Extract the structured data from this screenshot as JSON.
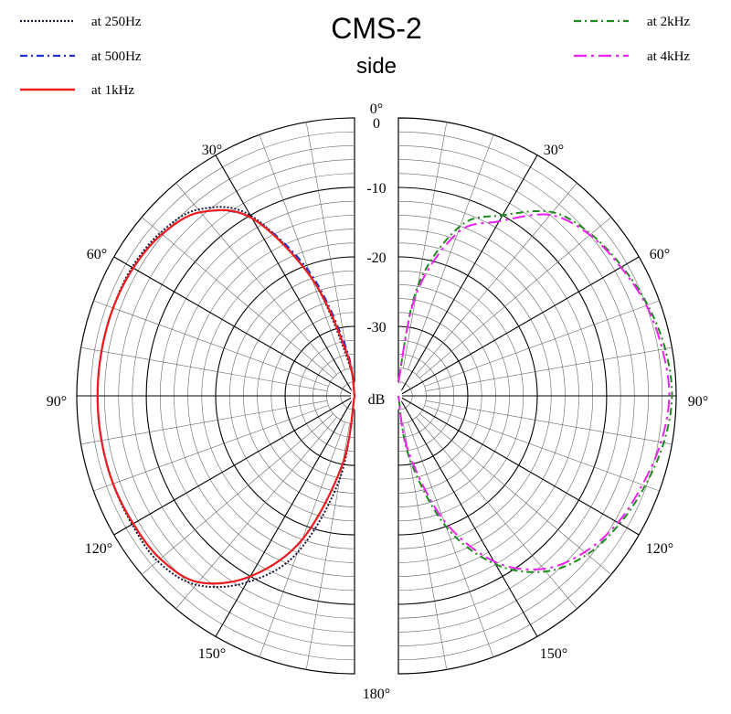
{
  "chart_data": {
    "type": "polar",
    "title": "CMS-2",
    "subtitle": "side",
    "radial_unit": "dB",
    "radial_ticks": [
      0,
      -10,
      -20,
      -30
    ],
    "radial_range": [
      -40,
      0
    ],
    "angle_ticks_left": [
      "0°",
      "30°",
      "60°",
      "90°",
      "120°",
      "150°",
      "180°"
    ],
    "angle_ticks_right": [
      "30°",
      "60°",
      "90°",
      "120°",
      "150°"
    ],
    "grid": true,
    "left_panel": {
      "series": [
        {
          "name": "at 250Hz",
          "color": "#1a1a3a",
          "style": "dotted",
          "angles": [
            0,
            10,
            20,
            30,
            40,
            50,
            60,
            70,
            80,
            90,
            100,
            110,
            120,
            130,
            140,
            150,
            160,
            170,
            180
          ],
          "values": [
            -40,
            -35,
            -22,
            -10,
            -5,
            -3.5,
            -3,
            -3,
            -3,
            -3,
            -3,
            -3,
            -3,
            -3,
            -4.5,
            -9,
            -16,
            -28,
            -40
          ]
        },
        {
          "name": "at 500Hz",
          "color": "#1f2fd6",
          "style": "dash-dot",
          "angles": [
            0,
            10,
            20,
            30,
            40,
            50,
            60,
            70,
            80,
            90,
            100,
            110,
            120,
            130,
            140,
            150,
            160,
            170,
            180
          ],
          "values": [
            -40,
            -33,
            -21,
            -10.5,
            -5.5,
            -3.8,
            -3.2,
            -3,
            -3,
            -3,
            -3,
            -3,
            -3.2,
            -3.5,
            -5,
            -10,
            -18,
            -30,
            -40
          ]
        },
        {
          "name": "at 1kHz",
          "color": "#ee1c1c",
          "style": "solid",
          "angles": [
            0,
            10,
            20,
            30,
            40,
            50,
            60,
            70,
            80,
            90,
            100,
            110,
            120,
            130,
            140,
            150,
            160,
            170,
            180
          ],
          "values": [
            -40,
            -34,
            -22,
            -10.5,
            -5.5,
            -3.8,
            -3.2,
            -3,
            -3,
            -3,
            -3,
            -3,
            -3.2,
            -3.5,
            -5,
            -10,
            -18,
            -30,
            -40
          ]
        }
      ]
    },
    "right_panel": {
      "series": [
        {
          "name": "at 2kHz",
          "color": "#1d8a1d",
          "style": "dash-dot",
          "angles": [
            0,
            10,
            20,
            30,
            40,
            50,
            60,
            70,
            80,
            90,
            100,
            110,
            120,
            130,
            140,
            150,
            160,
            170,
            180
          ],
          "values": [
            -38,
            -24,
            -14,
            -10,
            -5.5,
            -3.8,
            -2.8,
            -1.8,
            -1,
            -0.6,
            -1.2,
            -2.2,
            -3.2,
            -4.5,
            -7,
            -12,
            -20,
            -31,
            -40
          ]
        },
        {
          "name": "at 4kHz",
          "color": "#ee22ee",
          "style": "long-dash-dot",
          "angles": [
            0,
            10,
            20,
            30,
            40,
            50,
            60,
            70,
            80,
            90,
            100,
            110,
            120,
            130,
            140,
            150,
            160,
            170,
            180
          ],
          "values": [
            -38,
            -25,
            -15,
            -11,
            -6,
            -4,
            -3,
            -2,
            -1.4,
            -1,
            -1.6,
            -2.6,
            -3.5,
            -5,
            -7.5,
            -12.5,
            -21,
            -32,
            -40
          ]
        }
      ]
    }
  }
}
